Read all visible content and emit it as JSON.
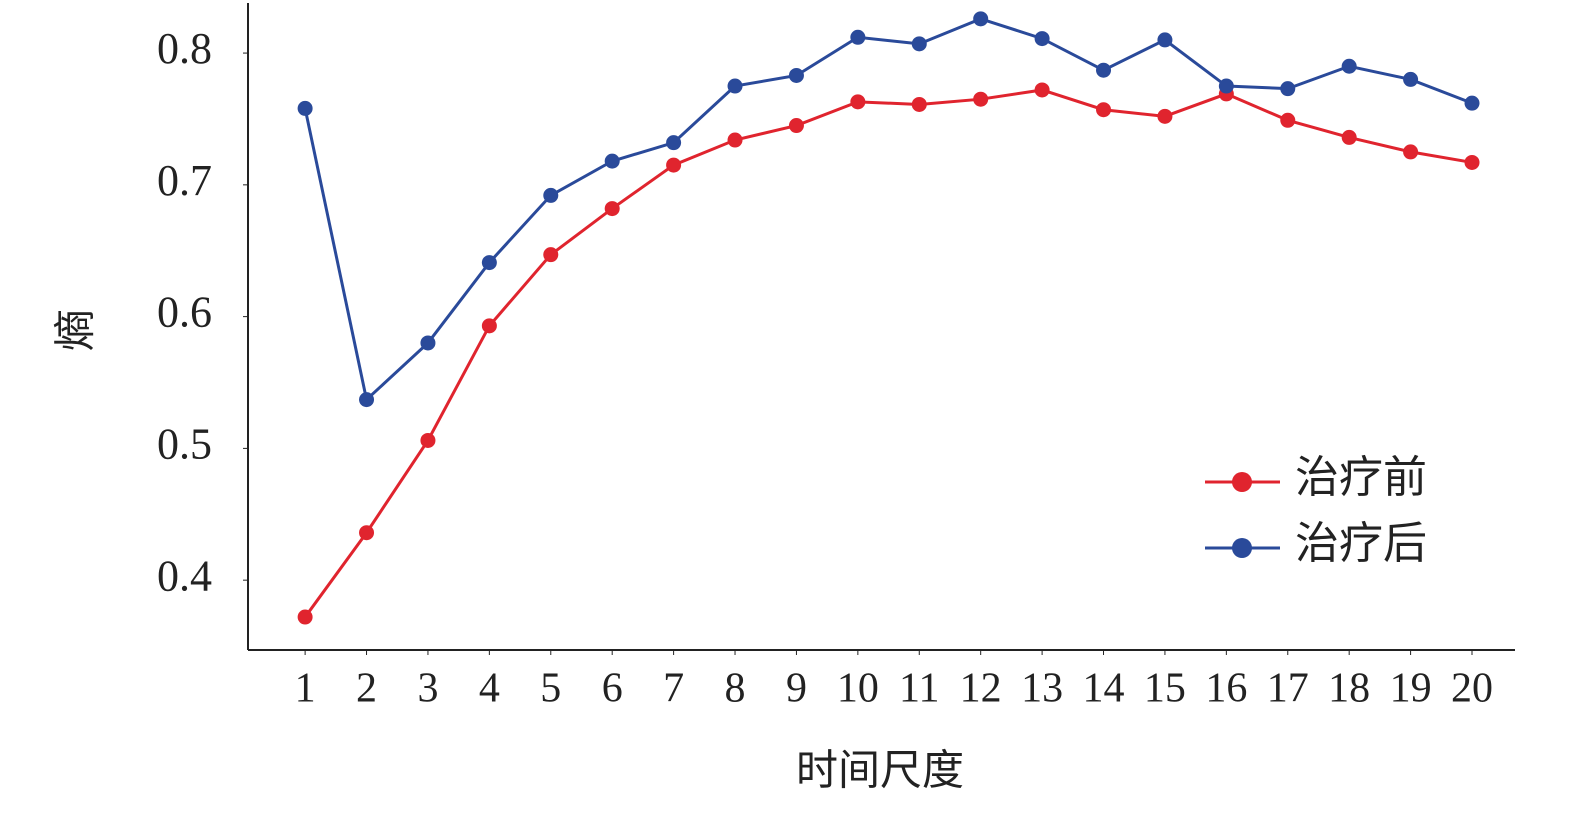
{
  "chart_data": {
    "type": "line",
    "x_label": "时间尺度",
    "y_label": "熵",
    "x": [
      1,
      2,
      3,
      4,
      5,
      6,
      7,
      8,
      9,
      10,
      11,
      12,
      13,
      14,
      15,
      16,
      17,
      18,
      19,
      20
    ],
    "xlim": [
      0.07,
      20.7
    ],
    "xticks": [
      1,
      2,
      3,
      4,
      5,
      6,
      7,
      8,
      9,
      10,
      11,
      12,
      13,
      14,
      15,
      16,
      17,
      18,
      19,
      20
    ],
    "ylim": [
      0.347,
      0.838
    ],
    "yticks": [
      0.4,
      0.5,
      0.6,
      0.7,
      0.8
    ],
    "grid": false,
    "legend": "lower-right",
    "series": [
      {
        "name": "治疗前",
        "color": "#e0242e",
        "values": [
          0.372,
          0.436,
          0.506,
          0.593,
          0.647,
          0.682,
          0.715,
          0.734,
          0.745,
          0.763,
          0.761,
          0.765,
          0.772,
          0.757,
          0.752,
          0.769,
          0.749,
          0.736,
          0.725,
          0.717
        ]
      },
      {
        "name": "治疗后",
        "color": "#2a4a9a",
        "values": [
          0.758,
          0.537,
          0.58,
          0.641,
          0.692,
          0.718,
          0.732,
          0.775,
          0.783,
          0.812,
          0.807,
          0.826,
          0.811,
          0.787,
          0.81,
          0.775,
          0.773,
          0.79,
          0.78,
          0.762
        ]
      }
    ]
  }
}
